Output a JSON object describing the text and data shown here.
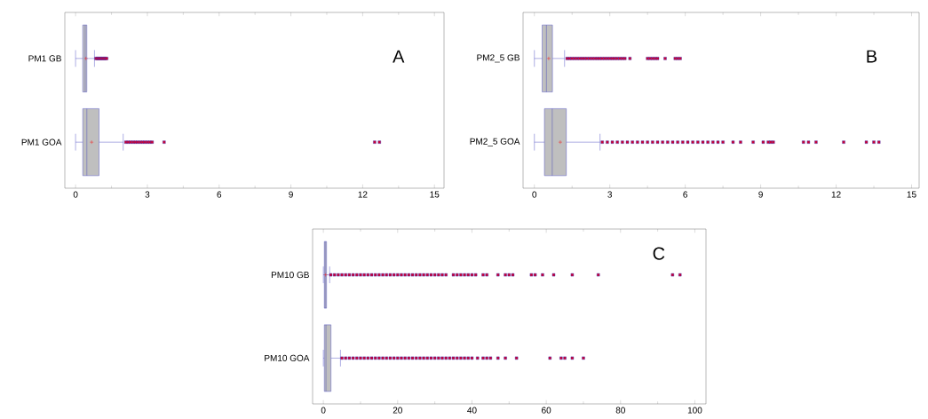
{
  "chart_data": [
    {
      "type": "box",
      "title": "A",
      "orientation": "horizontal",
      "categories": [
        "PM1 GB",
        "PM1 GOA"
      ],
      "color": "#3333bb",
      "marker": "square",
      "xlim": [
        -0.45,
        15.4
      ],
      "xticks": [
        0,
        3,
        6,
        9,
        12,
        15
      ],
      "boxes": [
        {
          "low": 0,
          "q1": 0.3,
          "median": 0.4,
          "q3": 0.47,
          "high": 0.79,
          "mean": 0.43,
          "outliers": [
            0.85,
            0.9,
            0.95,
            1.0,
            1.05,
            1.1,
            1.15,
            1.2,
            1.25,
            1.3
          ]
        },
        {
          "low": 0,
          "q1": 0.3,
          "median": 0.47,
          "q3": 0.98,
          "high": 1.99,
          "mean": 0.67,
          "outliers": [
            2.1,
            2.2,
            2.3,
            2.4,
            2.5,
            2.6,
            2.7,
            2.8,
            2.9,
            3.0,
            3.1,
            3.2,
            3.7,
            12.5,
            12.7
          ]
        }
      ]
    },
    {
      "type": "box",
      "title": "B",
      "orientation": "horizontal",
      "categories": [
        "PM2_5 GB",
        "PM2_5 GOA"
      ],
      "color": "#3333bb",
      "marker": "square",
      "xlim": [
        -0.45,
        15.3
      ],
      "xticks": [
        0,
        3,
        6,
        9,
        12,
        15
      ],
      "boxes": [
        {
          "low": 0,
          "q1": 0.31,
          "median": 0.48,
          "q3": 0.72,
          "high": 1.2,
          "mean": 0.57,
          "outliers": [
            1.3,
            1.4,
            1.5,
            1.6,
            1.7,
            1.8,
            1.9,
            2.0,
            2.1,
            2.2,
            2.3,
            2.4,
            2.5,
            2.6,
            2.7,
            2.8,
            2.9,
            3.0,
            3.1,
            3.2,
            3.3,
            3.4,
            3.5,
            3.6,
            3.8,
            4.5,
            4.6,
            4.7,
            4.8,
            4.9,
            5.2,
            5.6,
            5.7,
            5.8
          ]
        },
        {
          "low": 0,
          "q1": 0.4,
          "median": 0.71,
          "q3": 1.27,
          "high": 2.61,
          "mean": 1.03,
          "outliers": [
            2.7,
            2.9,
            3.1,
            3.3,
            3.5,
            3.7,
            3.9,
            4.1,
            4.3,
            4.5,
            4.7,
            4.9,
            5.1,
            5.3,
            5.5,
            5.7,
            5.9,
            6.1,
            6.3,
            6.5,
            6.7,
            6.9,
            7.1,
            7.3,
            7.5,
            7.9,
            8.2,
            8.7,
            9.1,
            9.3,
            9.4,
            9.5,
            10.7,
            10.9,
            11.2,
            12.3,
            13.2,
            13.5,
            13.7
          ]
        }
      ]
    },
    {
      "type": "box",
      "title": "C",
      "orientation": "horizontal",
      "categories": [
        "PM10 GB",
        "PM10 GOA"
      ],
      "color": "#3333bb",
      "marker": "square",
      "xlim": [
        -2.9,
        103
      ],
      "xticks": [
        0,
        20,
        40,
        60,
        80,
        100
      ],
      "boxes": [
        {
          "low": 0,
          "q1": 0.26,
          "median": 0.5,
          "q3": 0.85,
          "high": 1.7,
          "mean": 0.6,
          "outliers": [
            2,
            3,
            4,
            5,
            6,
            7,
            8,
            9,
            10,
            11,
            12,
            13,
            14,
            15,
            16,
            17,
            18,
            19,
            20,
            21,
            22,
            23,
            24,
            25,
            26,
            27,
            28,
            29,
            30,
            31,
            32,
            33,
            35,
            36,
            37,
            38,
            39,
            40,
            41,
            43,
            44,
            47,
            49,
            50,
            51,
            56,
            57,
            59,
            62,
            67,
            74,
            94,
            96
          ]
        },
        {
          "low": 0,
          "q1": 0.26,
          "median": 0.7,
          "q3": 2.05,
          "high": 4.6,
          "outliers": [
            5,
            6,
            7,
            8,
            9,
            10,
            11,
            12,
            13,
            14,
            15,
            16,
            17,
            18,
            19,
            20,
            21,
            22,
            23,
            24,
            25,
            26,
            27,
            28,
            29,
            30,
            31,
            32,
            33,
            34,
            35,
            36,
            37,
            38,
            39,
            40,
            41.5,
            43,
            44,
            45,
            47,
            49,
            52,
            61,
            64,
            65,
            67,
            70
          ]
        }
      ]
    }
  ]
}
